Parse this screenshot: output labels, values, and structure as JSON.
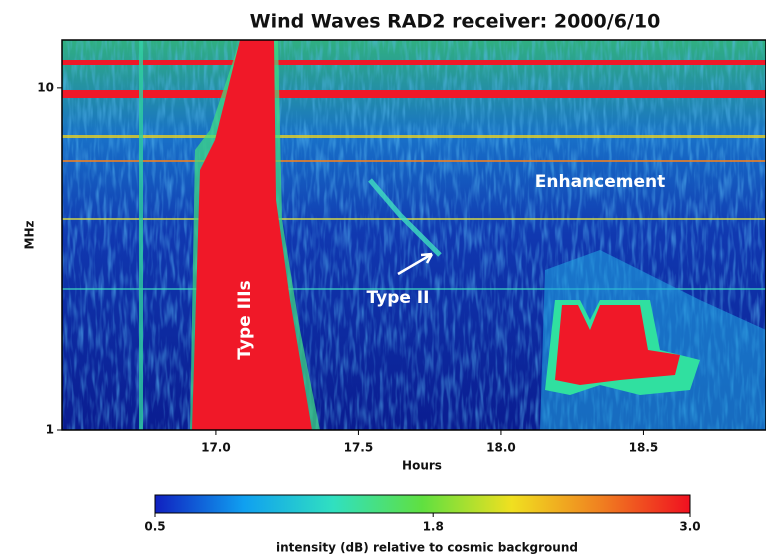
{
  "chart_data": {
    "type": "spectrogram",
    "title": "Wind Waves RAD2 receiver: 2000/6/10",
    "xlabel": "Hours",
    "ylabel": "MHz",
    "xlim": [
      16.46,
      18.93
    ],
    "xticks": [
      {
        "value": 17,
        "label": "17.0"
      },
      {
        "value": 17.5,
        "label": "17.5"
      },
      {
        "value": 18,
        "label": "18.0"
      },
      {
        "value": 18.5,
        "label": "18.5"
      }
    ],
    "ylim": [
      1,
      13.8
    ],
    "yticks": [
      1,
      10
    ],
    "log_y": true,
    "colorbar": {
      "label": "intensity (dB) relative to cosmic background",
      "clim": [
        0.5,
        3.0
      ],
      "ticks": [
        0.5,
        1.8,
        {
          "value": 3,
          "label": "3.0"
        }
      ],
      "colormap": [
        "#1020c0",
        "#10a0f0",
        "#30e0c0",
        "#60e040",
        "#f0e020",
        "#f08020",
        "#f01020"
      ]
    },
    "annotations": [
      "Enhancement",
      "Type II",
      "Type IIIs"
    ]
  }
}
